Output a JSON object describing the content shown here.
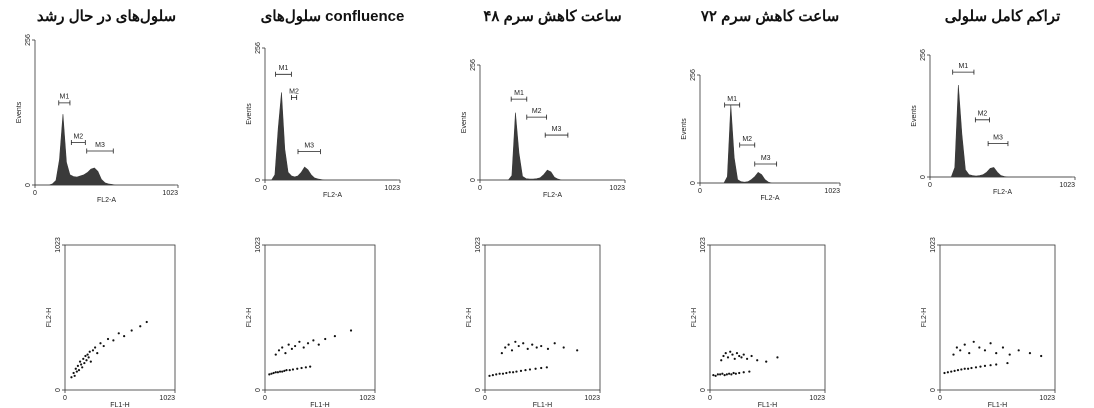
{
  "chart_data": [
    {
      "type": "histogram",
      "title": "سلول‌های در حال رشد",
      "xlabel": "FL2-A",
      "ylabel": "Events",
      "xlim": [
        0,
        1023
      ],
      "ylim": [
        0,
        256
      ],
      "xticks": [
        0,
        1023
      ],
      "yticks": [
        0,
        256
      ],
      "color": "#3a3a3a",
      "x": [
        0,
        25,
        50,
        75,
        100,
        125,
        150,
        175,
        200,
        225,
        250,
        275,
        300,
        325,
        350,
        375,
        400,
        425,
        450,
        475,
        500,
        525,
        550,
        575,
        600,
        625,
        650,
        675,
        700,
        725,
        750,
        775,
        800,
        825,
        850,
        875,
        900,
        925,
        950,
        975,
        1000
      ],
      "values": [
        0,
        0,
        0,
        0,
        0,
        2,
        8,
        45,
        125,
        40,
        18,
        15,
        14,
        16,
        18,
        22,
        28,
        30,
        24,
        10,
        4,
        2,
        1,
        0,
        0,
        0,
        0,
        0,
        0,
        0,
        0,
        0,
        0,
        0,
        0,
        0,
        0,
        0,
        0,
        0,
        0
      ],
      "markers": [
        {
          "label": "M1",
          "range": [
            170,
            250
          ],
          "y": 145
        },
        {
          "label": "M2",
          "range": [
            260,
            360
          ],
          "y": 75
        },
        {
          "label": "M3",
          "range": [
            370,
            560
          ],
          "y": 60
        }
      ]
    },
    {
      "type": "scatter",
      "xlabel": "FL1-H",
      "ylabel": "FL2-H",
      "xlim": [
        0,
        1023
      ],
      "ylim": [
        0,
        1023
      ],
      "xticks": [
        0,
        1023
      ],
      "yticks": [
        0,
        1023
      ],
      "color": "#111111",
      "x": [
        60,
        80,
        90,
        100,
        110,
        120,
        130,
        140,
        150,
        160,
        170,
        180,
        190,
        200,
        210,
        220,
        230,
        240,
        260,
        280,
        300,
        330,
        360,
        400,
        450,
        500,
        550,
        620,
        700,
        760
      ],
      "values": [
        90,
        120,
        100,
        150,
        130,
        170,
        140,
        200,
        180,
        160,
        220,
        190,
        240,
        210,
        250,
        230,
        270,
        200,
        280,
        300,
        260,
        330,
        310,
        360,
        350,
        400,
        380,
        420,
        450,
        480
      ]
    },
    {
      "type": "histogram",
      "title": "سلول‌های confluence",
      "xlabel": "FL2-A",
      "ylabel": "Events",
      "xlim": [
        0,
        1023
      ],
      "ylim": [
        0,
        256
      ],
      "xticks": [
        0,
        1023
      ],
      "yticks": [
        0,
        256
      ],
      "color": "#3a3a3a",
      "x": [
        0,
        25,
        50,
        75,
        100,
        125,
        150,
        175,
        200,
        225,
        250,
        275,
        300,
        325,
        350,
        375,
        400,
        425,
        450,
        475,
        500,
        525,
        550,
        575,
        600,
        625,
        650,
        675,
        700,
        725,
        750,
        775,
        800,
        825,
        850,
        875,
        900,
        925,
        950,
        975,
        1000
      ],
      "values": [
        0,
        0,
        0,
        10,
        100,
        170,
        60,
        15,
        8,
        6,
        8,
        15,
        25,
        20,
        10,
        4,
        2,
        1,
        0,
        0,
        0,
        0,
        0,
        0,
        0,
        0,
        0,
        0,
        0,
        0,
        0,
        0,
        0,
        0,
        0,
        0,
        0,
        0,
        0,
        0,
        0
      ],
      "markers": [
        {
          "label": "M1",
          "range": [
            80,
            200
          ],
          "y": 205
        },
        {
          "label": "M2",
          "range": [
            200,
            240
          ],
          "y": 160
        },
        {
          "label": "M3",
          "range": [
            250,
            420
          ],
          "y": 55
        }
      ]
    },
    {
      "type": "scatter",
      "xlabel": "FL1-H",
      "ylabel": "FL2-H",
      "xlim": [
        0,
        1023
      ],
      "ylim": [
        0,
        1023
      ],
      "xticks": [
        0,
        1023
      ],
      "yticks": [
        0,
        1023
      ],
      "color": "#111111",
      "x": [
        40,
        60,
        80,
        100,
        120,
        140,
        160,
        180,
        200,
        230,
        260,
        300,
        340,
        380,
        420,
        100,
        130,
        160,
        190,
        220,
        250,
        280,
        320,
        360,
        400,
        450,
        500,
        560,
        650,
        800
      ],
      "values": [
        110,
        115,
        120,
        125,
        125,
        130,
        130,
        135,
        140,
        140,
        145,
        150,
        155,
        160,
        165,
        250,
        280,
        300,
        260,
        320,
        290,
        310,
        340,
        300,
        330,
        350,
        320,
        360,
        380,
        420
      ]
    },
    {
      "type": "histogram",
      "title": "۴۸ ساعت کاهش سرم",
      "xlabel": "FL2-A",
      "ylabel": "Events",
      "xlim": [
        0,
        1023
      ],
      "ylim": [
        0,
        256
      ],
      "xticks": [
        0,
        1023
      ],
      "yticks": [
        0,
        256
      ],
      "color": "#3a3a3a",
      "x": [
        0,
        25,
        50,
        75,
        100,
        125,
        150,
        175,
        200,
        225,
        250,
        275,
        300,
        325,
        350,
        375,
        400,
        425,
        450,
        475,
        500,
        525,
        550,
        575,
        600,
        625,
        650,
        675,
        700,
        725,
        750,
        775,
        800,
        825,
        850,
        875,
        900,
        925,
        950,
        975,
        1000
      ],
      "values": [
        0,
        0,
        0,
        0,
        0,
        0,
        0,
        0,
        0,
        10,
        150,
        60,
        8,
        3,
        2,
        2,
        3,
        5,
        12,
        22,
        18,
        6,
        2,
        0,
        0,
        0,
        0,
        0,
        0,
        0,
        0,
        0,
        0,
        0,
        0,
        0,
        0,
        0,
        0,
        0,
        0
      ],
      "markers": [
        {
          "label": "M1",
          "range": [
            220,
            330
          ],
          "y": 180
        },
        {
          "label": "M2",
          "range": [
            330,
            470
          ],
          "y": 140
        },
        {
          "label": "M3",
          "range": [
            460,
            620
          ],
          "y": 100
        }
      ]
    },
    {
      "type": "scatter",
      "xlabel": "FL1-H",
      "ylabel": "FL2-H",
      "xlim": [
        0,
        1023
      ],
      "ylim": [
        0,
        1023
      ],
      "xticks": [
        0,
        1023
      ],
      "yticks": [
        0,
        1023
      ],
      "color": "#111111",
      "x": [
        40,
        70,
        100,
        130,
        160,
        190,
        220,
        250,
        280,
        320,
        360,
        400,
        450,
        500,
        550,
        150,
        180,
        210,
        240,
        270,
        300,
        340,
        380,
        420,
        460,
        500,
        560,
        620,
        700,
        820
      ],
      "values": [
        100,
        105,
        110,
        115,
        115,
        120,
        125,
        125,
        130,
        135,
        140,
        145,
        150,
        155,
        160,
        260,
        300,
        320,
        280,
        340,
        310,
        330,
        290,
        320,
        300,
        310,
        290,
        330,
        300,
        280
      ]
    },
    {
      "type": "histogram",
      "title": "۷۲ ساعت کاهش سرم",
      "xlabel": "FL2-A",
      "ylabel": "Events",
      "xlim": [
        0,
        1023
      ],
      "ylim": [
        0,
        256
      ],
      "xticks": [
        0,
        1023
      ],
      "yticks": [
        0,
        256
      ],
      "color": "#3a3a3a",
      "x": [
        0,
        25,
        50,
        75,
        100,
        125,
        150,
        175,
        200,
        225,
        250,
        275,
        300,
        325,
        350,
        375,
        400,
        425,
        450,
        475,
        500,
        525,
        550,
        575,
        600,
        625,
        650,
        675,
        700,
        725,
        750,
        775,
        800,
        825,
        850,
        875,
        900,
        925,
        950,
        975,
        1000
      ],
      "values": [
        0,
        0,
        0,
        0,
        0,
        0,
        0,
        0,
        15,
        185,
        60,
        8,
        3,
        2,
        3,
        8,
        15,
        25,
        20,
        8,
        2,
        0,
        0,
        0,
        0,
        0,
        0,
        0,
        0,
        0,
        0,
        0,
        0,
        0,
        0,
        0,
        0,
        0,
        0,
        0,
        0
      ],
      "markers": [
        {
          "label": "M1",
          "range": [
            180,
            290
          ],
          "y": 185
        },
        {
          "label": "M2",
          "range": [
            290,
            400
          ],
          "y": 90
        },
        {
          "label": "M3",
          "range": [
            400,
            560
          ],
          "y": 45
        }
      ]
    },
    {
      "type": "scatter",
      "xlabel": "FL1-H",
      "ylabel": "FL2-H",
      "xlim": [
        0,
        1023
      ],
      "ylim": [
        0,
        1023
      ],
      "xticks": [
        0,
        1023
      ],
      "yticks": [
        0,
        1023
      ],
      "color": "#111111",
      "x": [
        30,
        50,
        70,
        90,
        110,
        130,
        150,
        170,
        190,
        210,
        230,
        260,
        300,
        350,
        100,
        120,
        140,
        160,
        180,
        200,
        220,
        240,
        260,
        280,
        300,
        330,
        370,
        420,
        500,
        600
      ],
      "values": [
        105,
        100,
        110,
        110,
        115,
        105,
        110,
        115,
        110,
        120,
        115,
        120,
        125,
        130,
        210,
        240,
        260,
        230,
        270,
        250,
        220,
        260,
        240,
        230,
        250,
        220,
        240,
        210,
        200,
        230
      ]
    },
    {
      "type": "histogram",
      "title": "تراکم کامل سلولی",
      "xlabel": "FL2-A",
      "ylabel": "Events",
      "xlim": [
        0,
        1023
      ],
      "ylim": [
        0,
        256
      ],
      "xticks": [
        0,
        1023
      ],
      "yticks": [
        0,
        256
      ],
      "color": "#3a3a3a",
      "x": [
        0,
        25,
        50,
        75,
        100,
        125,
        150,
        175,
        200,
        225,
        250,
        275,
        300,
        325,
        350,
        375,
        400,
        425,
        450,
        475,
        500,
        525,
        550,
        575,
        600,
        625,
        650,
        675,
        700,
        725,
        750,
        775,
        800,
        825,
        850,
        875,
        900,
        925,
        950,
        975,
        1000
      ],
      "values": [
        0,
        0,
        0,
        0,
        0,
        0,
        0,
        20,
        193,
        90,
        15,
        5,
        3,
        2,
        3,
        5,
        10,
        18,
        20,
        10,
        3,
        1,
        0,
        0,
        0,
        0,
        0,
        0,
        0,
        0,
        0,
        0,
        0,
        0,
        0,
        0,
        0,
        0,
        0,
        0,
        0
      ],
      "markers": [
        {
          "label": "M1",
          "range": [
            160,
            310
          ],
          "y": 220
        },
        {
          "label": "M2",
          "range": [
            320,
            420
          ],
          "y": 120
        },
        {
          "label": "M3",
          "range": [
            410,
            550
          ],
          "y": 70
        }
      ]
    },
    {
      "type": "scatter",
      "xlabel": "FL1-H",
      "ylabel": "FL2-H",
      "xlim": [
        0,
        1023
      ],
      "ylim": [
        0,
        1023
      ],
      "xticks": [
        0,
        1023
      ],
      "yticks": [
        0,
        1023
      ],
      "color": "#111111",
      "x": [
        40,
        70,
        100,
        130,
        160,
        190,
        220,
        250,
        280,
        320,
        360,
        400,
        450,
        500,
        600,
        120,
        150,
        180,
        220,
        260,
        300,
        350,
        400,
        450,
        500,
        560,
        620,
        700,
        800,
        900
      ],
      "values": [
        120,
        125,
        130,
        135,
        140,
        145,
        150,
        150,
        155,
        160,
        165,
        170,
        175,
        180,
        190,
        250,
        300,
        280,
        320,
        260,
        340,
        300,
        280,
        330,
        260,
        300,
        250,
        280,
        260,
        240
      ]
    }
  ]
}
